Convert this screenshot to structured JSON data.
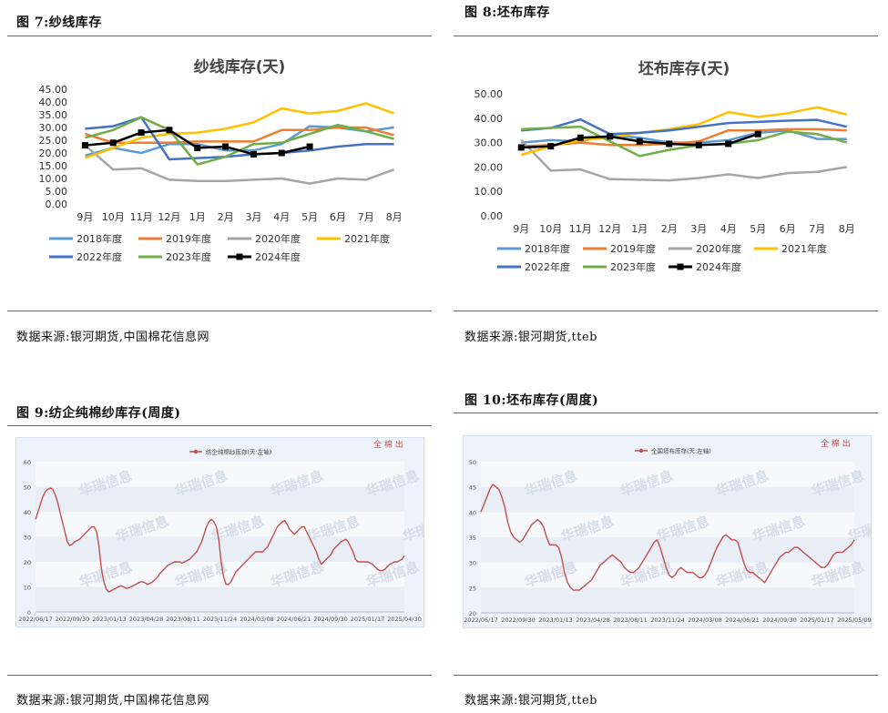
{
  "figures": [
    {
      "label": "图 7:纱线库存",
      "source": "数据来源:银河期货,中国棉花信息网"
    },
    {
      "label": "图 8:坯布库存",
      "source": "数据来源:银河期货,tteb"
    },
    {
      "label": "图 9:纺企纯棉纱库存(周度)",
      "source": "数据来源:银河期货,中国棉花信息网"
    },
    {
      "label": "图 10:坯布库存(周度)",
      "source": "数据来源:银河期货,tteb"
    }
  ],
  "colors": {
    "2018": "#5b9bd5",
    "2019": "#ed7d31",
    "2020": "#a5a5a5",
    "2021": "#ffc000",
    "2022": "#4472c4",
    "2023": "#70ad47",
    "2024": "#000000",
    "weekly": "#c0504d"
  },
  "chart_data": [
    {
      "type": "line",
      "title": "纱线库存(天)",
      "categories": [
        "9月",
        "10月",
        "11月",
        "12月",
        "1月",
        "2月",
        "3月",
        "4月",
        "5月",
        "6月",
        "7月",
        "8月"
      ],
      "yticks": [
        "0.00",
        "5.00",
        "10.00",
        "15.00",
        "20.00",
        "25.00",
        "30.00",
        "35.00",
        "40.00",
        "45.00"
      ],
      "ylim": [
        0,
        45
      ],
      "legend_position": "bottom",
      "series": [
        {
          "name": "2018年度",
          "color": "#5b9bd5",
          "values": [
            19,
            22,
            20,
            23.5,
            23.5,
            21,
            21,
            23.5,
            30.5,
            30,
            28.5,
            30
          ]
        },
        {
          "name": "2019年度",
          "color": "#ed7d31",
          "values": [
            27.5,
            24,
            24,
            24,
            24.5,
            24.5,
            24.5,
            29,
            29,
            30,
            30,
            27
          ]
        },
        {
          "name": "2020年度",
          "color": "#a5a5a5",
          "values": [
            23,
            13.5,
            14,
            9.5,
            9,
            9,
            9.5,
            10,
            8,
            10,
            9.5,
            13.5
          ]
        },
        {
          "name": "2021年度",
          "color": "#ffc000",
          "values": [
            18,
            22,
            26,
            27.5,
            28,
            29.5,
            32,
            37.5,
            35.5,
            36.5,
            39.5,
            35.5
          ]
        },
        {
          "name": "2022年度",
          "color": "#4472c4",
          "values": [
            29.5,
            30.5,
            34,
            17.5,
            18,
            18.5,
            19.5,
            20,
            21,
            22.5,
            23.5,
            23.5
          ]
        },
        {
          "name": "2023年度",
          "color": "#70ad47",
          "values": [
            26,
            29,
            34,
            29,
            15.5,
            18.5,
            23.5,
            24,
            27.5,
            31,
            28.5,
            25.5
          ]
        },
        {
          "name": "2024年度",
          "color": "#000000",
          "markers": true,
          "values": [
            23,
            24,
            28,
            29,
            22,
            22.5,
            19.5,
            20,
            22.5,
            null,
            null,
            null
          ]
        }
      ]
    },
    {
      "type": "line",
      "title": "坯布库存(天)",
      "categories": [
        "9月",
        "10月",
        "11月",
        "12月",
        "1月",
        "2月",
        "3月",
        "4月",
        "5月",
        "6月",
        "7月",
        "8月"
      ],
      "yticks": [
        "0.00",
        "10.00",
        "20.00",
        "30.00",
        "40.00",
        "50.00"
      ],
      "ylim": [
        0,
        50
      ],
      "legend_position": "bottom",
      "series": [
        {
          "name": "2018年度",
          "color": "#5b9bd5",
          "values": [
            30,
            31,
            30.5,
            33,
            32,
            30,
            30,
            31,
            34,
            35,
            31.5,
            31.5
          ]
        },
        {
          "name": "2019年度",
          "color": "#ed7d31",
          "values": [
            28.5,
            29,
            30,
            29,
            29,
            29.5,
            30.5,
            35,
            35,
            35.5,
            35.5,
            35
          ]
        },
        {
          "name": "2020年度",
          "color": "#a5a5a5",
          "values": [
            31,
            18.5,
            19,
            15,
            14.8,
            14.5,
            15.5,
            17,
            15.5,
            17.5,
            18,
            20
          ]
        },
        {
          "name": "2021年度",
          "color": "#ffc000",
          "values": [
            25,
            28.5,
            31,
            32,
            34,
            35.5,
            37.5,
            42.5,
            40.5,
            42,
            44.5,
            41.5
          ]
        },
        {
          "name": "2022年度",
          "color": "#4472c4",
          "values": [
            35,
            36,
            39.5,
            33.5,
            34,
            35,
            36.5,
            38,
            38.5,
            39,
            39.3,
            36.5
          ]
        },
        {
          "name": "2023年度",
          "color": "#70ad47",
          "values": [
            35.5,
            36,
            36.5,
            30.5,
            24.5,
            27,
            29,
            29.5,
            31,
            34.5,
            33.5,
            30
          ]
        },
        {
          "name": "2024年度",
          "color": "#000000",
          "markers": true,
          "values": [
            28,
            28.5,
            32,
            32.5,
            30.5,
            29.5,
            29,
            29.5,
            33.5,
            null,
            null,
            null
          ]
        }
      ]
    },
    {
      "type": "line",
      "title": "",
      "legend": "纺企纯棉纱库存(天:左轴)",
      "corner_text": "全 棉 出",
      "watermark": "华瑞信息",
      "color": "#c0504d",
      "yticks": [
        "0",
        "10",
        "20",
        "30",
        "40",
        "50",
        "60"
      ],
      "ylim": [
        0,
        60
      ],
      "xticks": [
        "2022/06/17",
        "2022/09/30",
        "2023/01/13",
        "2023/04/28",
        "2023/08/11",
        "2023/11/24",
        "2024/03/08",
        "2024/06/21",
        "2024/09/30",
        "2025/01/17",
        "2025/04/30"
      ],
      "values": [
        37,
        40,
        43,
        46,
        48,
        49,
        49.5,
        49,
        47,
        44,
        40,
        36,
        32,
        28,
        26.5,
        27,
        28,
        28.5,
        29,
        30,
        31,
        32,
        33,
        34,
        34,
        32,
        26,
        17,
        12,
        9,
        8,
        8.5,
        9,
        9.5,
        10,
        10.5,
        10,
        9.5,
        9.5,
        10,
        10.5,
        11,
        11.5,
        12,
        12,
        11.5,
        11,
        11.5,
        12,
        13,
        14,
        15.5,
        16.5,
        17.5,
        18.5,
        19,
        19.5,
        20,
        20,
        20,
        19.5,
        20,
        20.5,
        21,
        22,
        23,
        24,
        26,
        28,
        31,
        34,
        36,
        37,
        36,
        34,
        29,
        20,
        14,
        11,
        11,
        12,
        14,
        16,
        17,
        18,
        19,
        20,
        21,
        22,
        23,
        24,
        24,
        24,
        24,
        25,
        26,
        28,
        30,
        32,
        34,
        35,
        36,
        36.5,
        35,
        33,
        32,
        31,
        32,
        33,
        34,
        34,
        32,
        30,
        28,
        26,
        24,
        21,
        19,
        20,
        21,
        22,
        23,
        25,
        26,
        27,
        28,
        28.5,
        29,
        28,
        26,
        24,
        21,
        20,
        20,
        20,
        20,
        20,
        19.5,
        19,
        18,
        17,
        16.5,
        16.5,
        17,
        18,
        19,
        19.5,
        20,
        20,
        20.5,
        21,
        22.5
      ]
    },
    {
      "type": "line",
      "title": "",
      "legend": "全国坯布库存(天:左轴)",
      "corner_text": "全 棉 出",
      "watermark": "华瑞信息",
      "color": "#c0504d",
      "yticks": [
        "20",
        "25",
        "30",
        "35",
        "40",
        "45",
        "50"
      ],
      "ylim": [
        20,
        50
      ],
      "xticks": [
        "2022/06/17",
        "2022/09/30",
        "2023/01/13",
        "2023/04/28",
        "2023/08/11",
        "2023/11/24",
        "2024/03/08",
        "2024/06/21",
        "2024/09/30",
        "2025/01/17",
        "2025/05/09"
      ],
      "values": [
        40,
        41.5,
        43,
        44.5,
        45.5,
        45,
        44.5,
        43,
        41,
        38,
        36,
        35,
        34.5,
        34,
        34.5,
        35.5,
        36.5,
        37.5,
        38,
        38.5,
        38,
        37,
        35,
        33.5,
        33.5,
        33.5,
        33,
        31,
        28,
        26,
        25,
        24.5,
        24.5,
        24.5,
        25,
        25.5,
        26,
        26.5,
        27.5,
        28.5,
        29.5,
        30,
        30.5,
        31,
        31.5,
        31,
        30.5,
        30,
        29,
        28.5,
        28,
        28,
        28.5,
        29,
        30,
        31,
        32,
        33,
        34,
        34.5,
        33,
        31,
        29,
        27.5,
        27,
        27.5,
        28.5,
        29,
        28.5,
        28,
        28,
        28,
        27.5,
        27,
        27,
        27.5,
        28.5,
        30,
        31.5,
        33,
        34,
        35,
        35.5,
        35,
        34.5,
        34.5,
        34,
        32,
        30,
        28.5,
        28,
        28,
        27.5,
        27,
        26.5,
        26,
        27,
        28,
        29,
        30,
        31,
        31.5,
        32,
        32,
        32.5,
        33,
        33,
        32.5,
        32,
        31.5,
        31,
        30.5,
        30,
        29.5,
        29,
        29,
        29.5,
        30.5,
        31.5,
        32,
        32,
        32,
        32.5,
        33,
        33.5,
        34.5
      ]
    }
  ]
}
